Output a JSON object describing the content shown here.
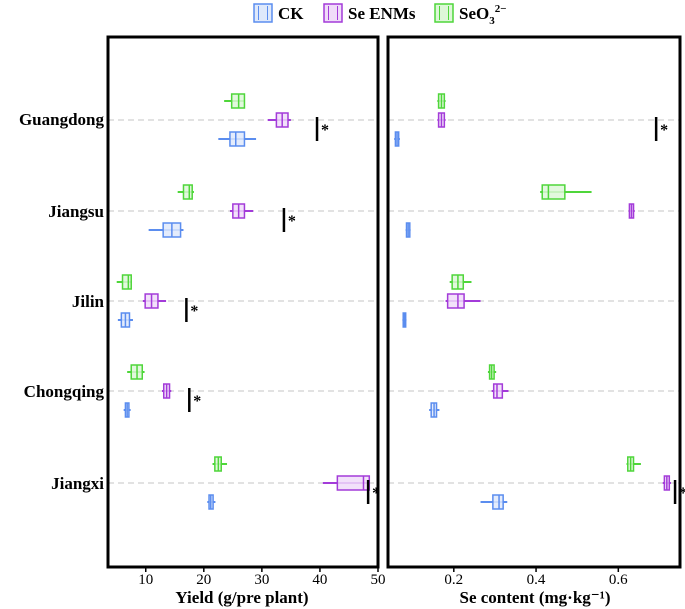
{
  "legend": {
    "items": [
      {
        "name": "CK",
        "color": "#5b8def"
      },
      {
        "name": "Se ENMs",
        "color": "#a33bd9"
      },
      {
        "name": "SeO3 2−",
        "label_main": "SeO",
        "label_sub": "3",
        "label_sup": "2−",
        "color": "#4fd63a"
      }
    ]
  },
  "significance_marker": "*",
  "chart_data": [
    {
      "type": "boxplot",
      "orientation": "horizontal",
      "xlabel": "Yield (g/pre plant)",
      "ylabel": "",
      "xlim": [
        3.5,
        50
      ],
      "xticks": [
        10,
        20,
        30,
        40,
        50
      ],
      "grid": "dashed horizontal at each province",
      "categories": [
        "Guangdong",
        "Jiangsu",
        "Jilin",
        "Chongqing",
        "Jiangxi"
      ],
      "series": [
        {
          "name": "CK",
          "color": "#5b8def",
          "boxes": [
            {
              "min": 22.5,
              "q1": 24.5,
              "median": 25.5,
              "q3": 27.0,
              "max": 29.0
            },
            {
              "min": 10.5,
              "q1": 13.0,
              "median": 14.5,
              "q3": 16.0,
              "max": 16.5
            },
            {
              "min": 5.2,
              "q1": 5.8,
              "median": 6.5,
              "q3": 7.2,
              "max": 7.8
            },
            {
              "min": 6.2,
              "q1": 6.5,
              "median": 6.8,
              "q3": 7.1,
              "max": 7.4
            },
            {
              "min": 20.6,
              "q1": 20.9,
              "median": 21.2,
              "q3": 21.6,
              "max": 22.0
            }
          ]
        },
        {
          "name": "Se ENMs",
          "color": "#a33bd9",
          "boxes": [
            {
              "min": 31.0,
              "q1": 32.5,
              "median": 33.5,
              "q3": 34.5,
              "max": 35.0
            },
            {
              "min": 24.5,
              "q1": 25.0,
              "median": 26.0,
              "q3": 27.0,
              "max": 28.5
            },
            {
              "min": 9.5,
              "q1": 9.9,
              "median": 11.0,
              "q3": 12.1,
              "max": 13.5
            },
            {
              "min": 12.8,
              "q1": 13.1,
              "median": 13.6,
              "q3": 14.1,
              "max": 14.4
            },
            {
              "min": 40.5,
              "q1": 43.0,
              "median": 47.5,
              "q3": 48.5,
              "max": 48.5
            }
          ]
        },
        {
          "name": "SeO3 2−",
          "color": "#4fd63a",
          "boxes": [
            {
              "min": 23.5,
              "q1": 24.8,
              "median": 26.0,
              "q3": 27.0,
              "max": 27.0
            },
            {
              "min": 15.5,
              "q1": 16.5,
              "median": 17.5,
              "q3": 18.0,
              "max": 18.3
            },
            {
              "min": 5.0,
              "q1": 6.0,
              "median": 7.0,
              "q3": 7.5,
              "max": 7.6
            },
            {
              "min": 6.8,
              "q1": 7.5,
              "median": 8.5,
              "q3": 9.4,
              "max": 9.8
            },
            {
              "min": 21.5,
              "q1": 21.9,
              "median": 22.5,
              "q3": 23.0,
              "max": 24.0
            }
          ]
        }
      ],
      "significance_x": [
        39.5,
        33.8,
        17.0,
        17.5,
        48.3
      ]
    },
    {
      "type": "boxplot",
      "orientation": "horizontal",
      "xlabel": "Se content (mg·kg⁻¹)",
      "ylabel": "",
      "xlim": [
        0.04,
        0.75
      ],
      "xticks": [
        0.2,
        0.4,
        0.6
      ],
      "xtick_labels": [
        "0.2",
        "0.4",
        "0.6"
      ],
      "grid": "dashed horizontal at each province",
      "categories": [
        "Guangdong",
        "Jiangsu",
        "Jilin",
        "Chongqing",
        "Jiangxi"
      ],
      "series": [
        {
          "name": "CK",
          "color": "#5b8def",
          "boxes": [
            {
              "min": 0.055,
              "q1": 0.058,
              "median": 0.062,
              "q3": 0.066,
              "max": 0.069
            },
            {
              "min": 0.083,
              "q1": 0.085,
              "median": 0.089,
              "q3": 0.093,
              "max": 0.095
            },
            {
              "min": 0.075,
              "q1": 0.077,
              "median": 0.08,
              "q3": 0.083,
              "max": 0.085
            },
            {
              "min": 0.14,
              "q1": 0.145,
              "median": 0.152,
              "q3": 0.158,
              "max": 0.165
            },
            {
              "min": 0.265,
              "q1": 0.295,
              "median": 0.31,
              "q3": 0.32,
              "max": 0.33
            }
          ]
        },
        {
          "name": "Se ENMs",
          "color": "#a33bd9",
          "boxes": [
            {
              "min": 0.16,
              "q1": 0.163,
              "median": 0.17,
              "q3": 0.177,
              "max": 0.18
            },
            {
              "min": 0.625,
              "q1": 0.627,
              "median": 0.632,
              "q3": 0.637,
              "max": 0.64
            },
            {
              "min": 0.18,
              "q1": 0.185,
              "median": 0.21,
              "q3": 0.225,
              "max": 0.265
            },
            {
              "min": 0.292,
              "q1": 0.297,
              "median": 0.305,
              "q3": 0.318,
              "max": 0.333
            },
            {
              "min": 0.708,
              "q1": 0.712,
              "median": 0.718,
              "q3": 0.724,
              "max": 0.728
            }
          ]
        },
        {
          "name": "SeO3 2−",
          "color": "#4fd63a",
          "boxes": [
            {
              "min": 0.16,
              "q1": 0.163,
              "median": 0.17,
              "q3": 0.177,
              "max": 0.18
            },
            {
              "min": 0.41,
              "q1": 0.415,
              "median": 0.43,
              "q3": 0.47,
              "max": 0.535
            },
            {
              "min": 0.19,
              "q1": 0.196,
              "median": 0.21,
              "q3": 0.223,
              "max": 0.243
            },
            {
              "min": 0.283,
              "q1": 0.287,
              "median": 0.292,
              "q3": 0.298,
              "max": 0.303
            },
            {
              "min": 0.62,
              "q1": 0.623,
              "median": 0.63,
              "q3": 0.637,
              "max": 0.655
            }
          ]
        }
      ],
      "significance_x": [
        0.692,
        null,
        null,
        null,
        0.738
      ]
    }
  ]
}
